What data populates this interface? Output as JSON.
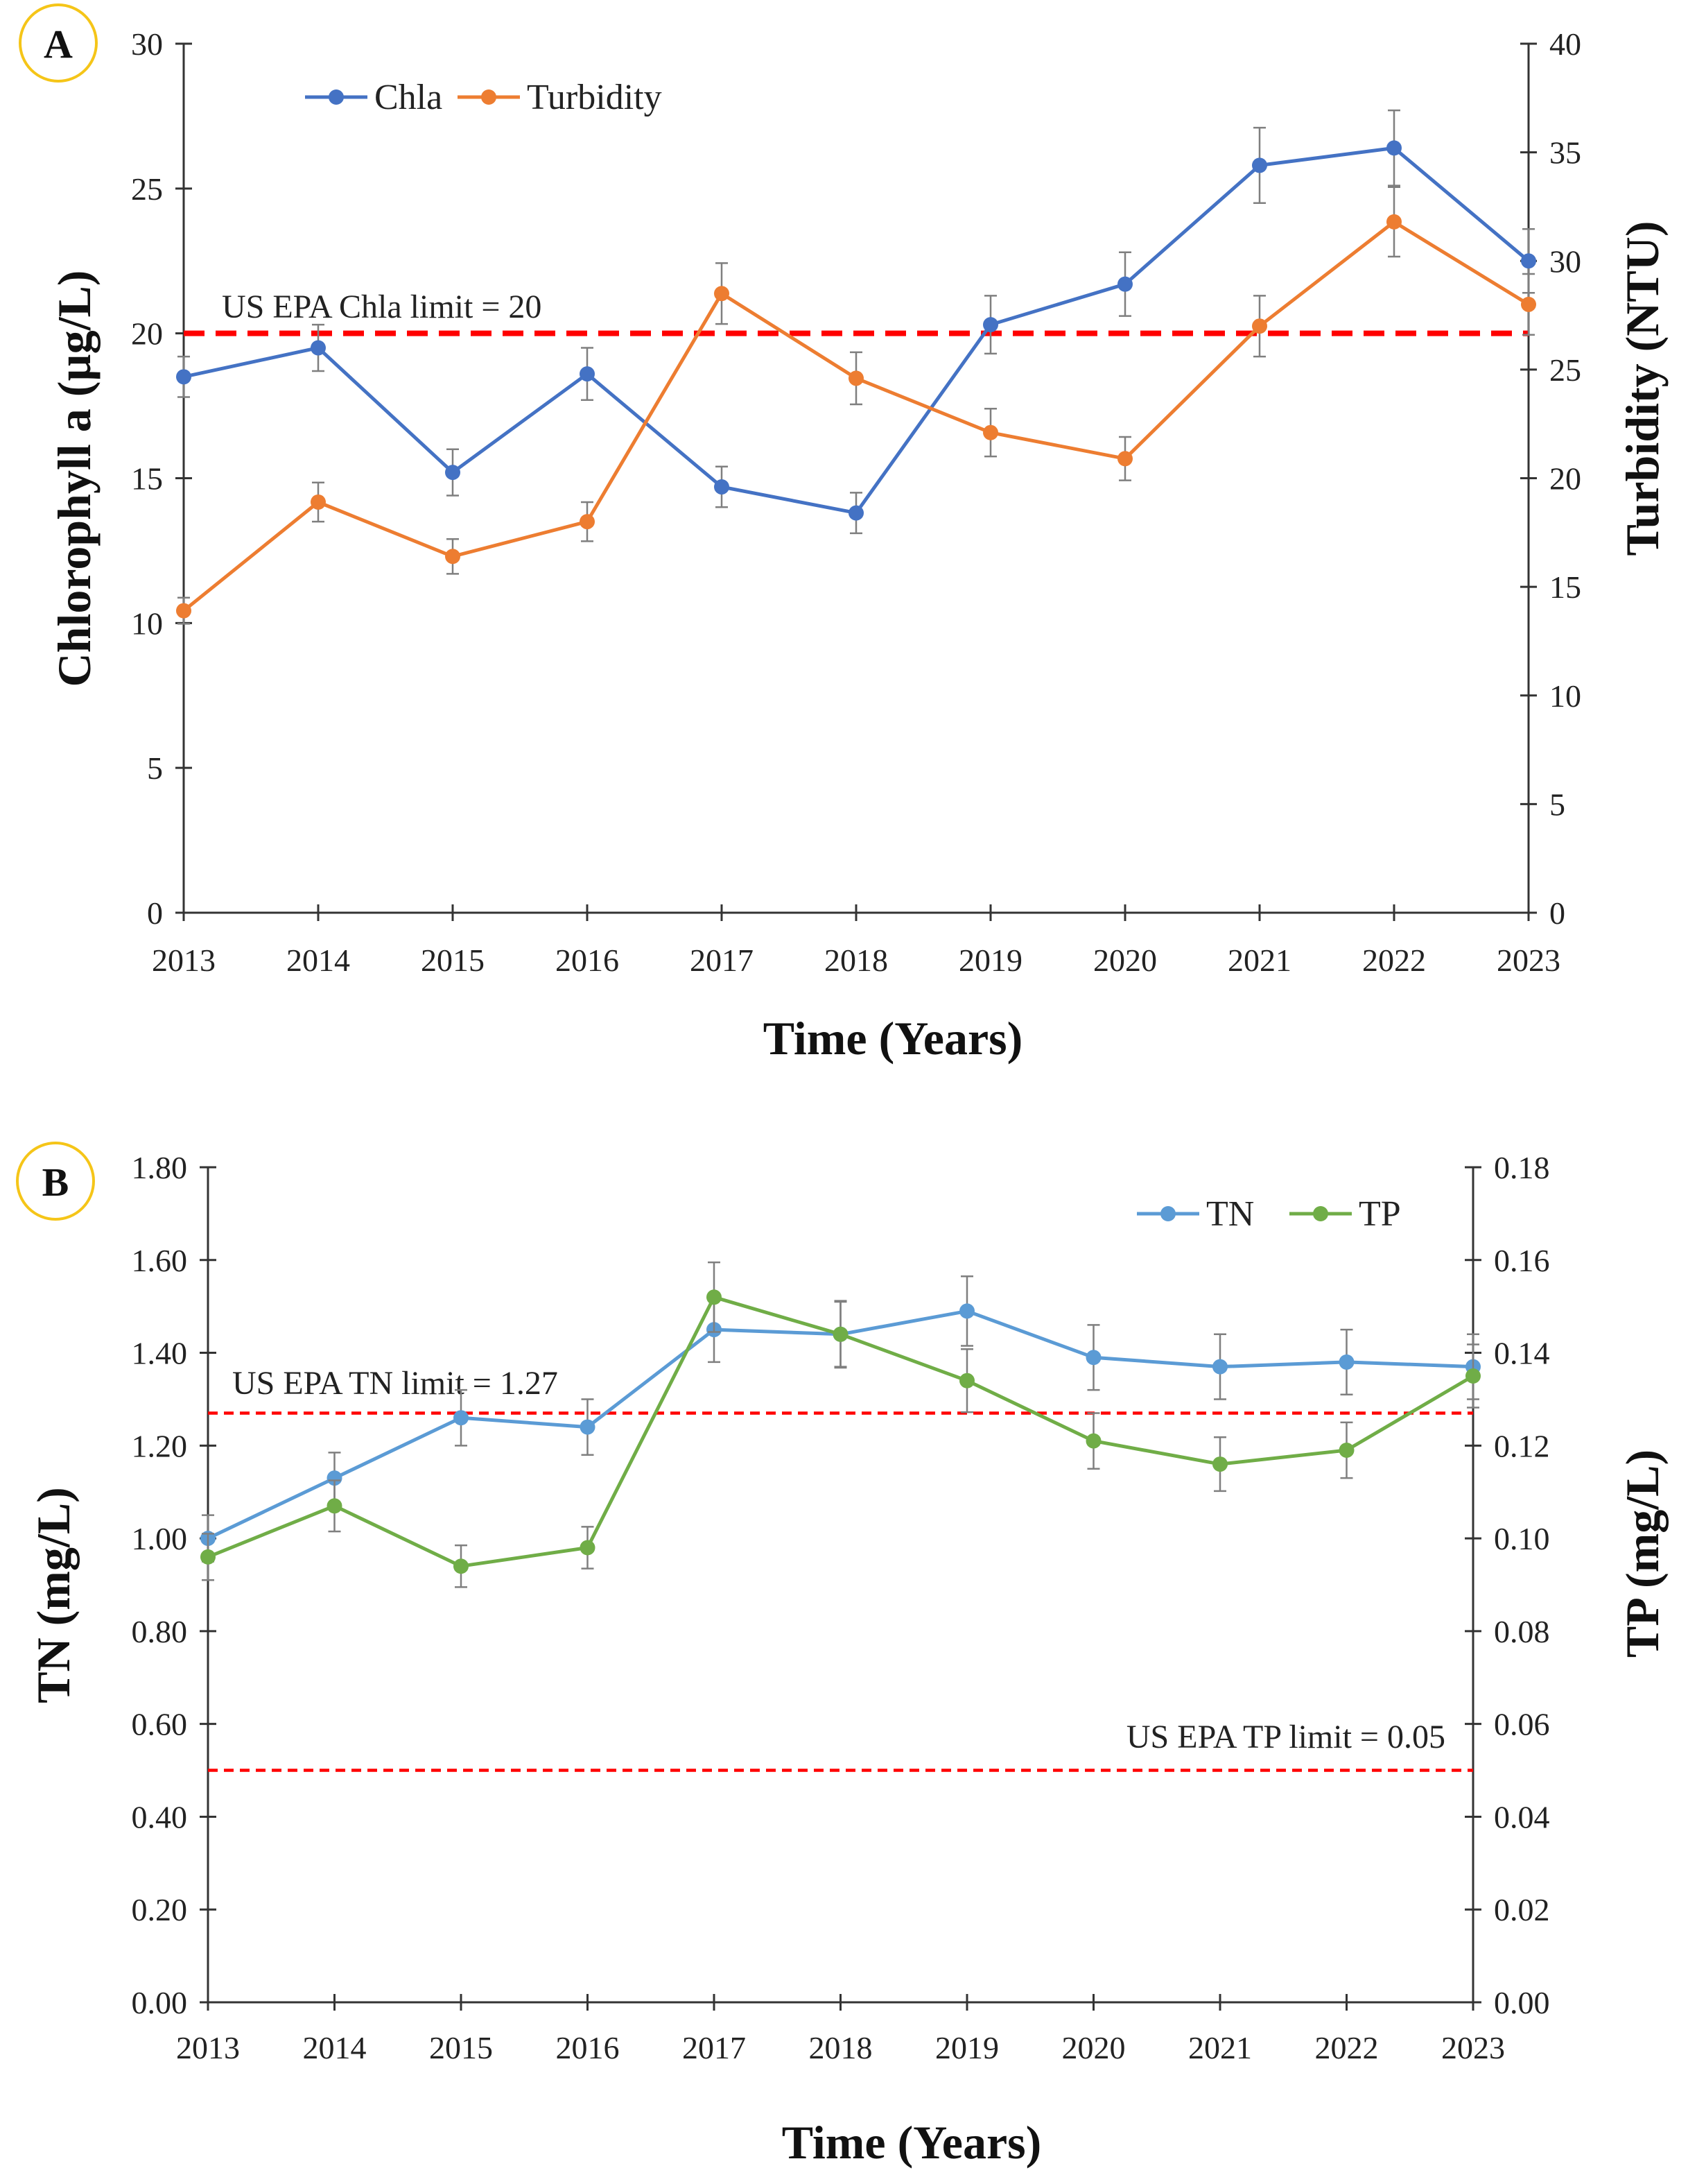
{
  "chart_data": [
    {
      "type": "line",
      "panel_label": "A",
      "categories": [
        "2013",
        "2014",
        "2015",
        "2016",
        "2017",
        "2018",
        "2019",
        "2020",
        "2021",
        "2022",
        "2023"
      ],
      "xlabel": "Time (Years)",
      "ylabel": "Chlorophyll a (µg/L)",
      "ylabel_right": "Turbidity (NTU)",
      "ylim": [
        0,
        30
      ],
      "yticks": [
        "0",
        "5",
        "10",
        "15",
        "20",
        "25",
        "30"
      ],
      "ylim_right": [
        0,
        40
      ],
      "yticks_right": [
        "0",
        "5",
        "10",
        "15",
        "20",
        "25",
        "30",
        "35",
        "40"
      ],
      "legend_position": "top-left",
      "series": [
        {
          "name": "Chla",
          "axis": "left",
          "color": "#4472C4",
          "values": [
            18.5,
            19.5,
            15.2,
            18.6,
            14.7,
            13.8,
            20.3,
            21.7,
            25.8,
            26.4,
            22.5
          ],
          "errors": [
            0.7,
            0.8,
            0.8,
            0.9,
            0.7,
            0.7,
            1.0,
            1.1,
            1.3,
            1.3,
            1.1
          ]
        },
        {
          "name": "Turbidity",
          "axis": "right",
          "color": "#ED7D31",
          "values": [
            13.9,
            18.9,
            16.4,
            18.0,
            28.5,
            24.6,
            22.1,
            20.9,
            27.0,
            31.8,
            28.0
          ],
          "errors": [
            0.6,
            0.9,
            0.8,
            0.9,
            1.4,
            1.2,
            1.1,
            1.0,
            1.4,
            1.6,
            1.4
          ]
        }
      ],
      "limits": [
        {
          "label": "US EPA Chla limit = 20",
          "axis": "left",
          "value": 20,
          "color": "#FF0000"
        }
      ]
    },
    {
      "type": "line",
      "panel_label": "B",
      "categories": [
        "2013",
        "2014",
        "2015",
        "2016",
        "2017",
        "2018",
        "2019",
        "2020",
        "2021",
        "2022",
        "2023"
      ],
      "xlabel": "Time (Years)",
      "ylabel": "TN (mg/L)",
      "ylabel_right": "TP (mg/L)",
      "ylim": [
        0,
        1.8
      ],
      "yticks": [
        "0.00",
        "0.20",
        "0.40",
        "0.60",
        "0.80",
        "1.00",
        "1.20",
        "1.40",
        "1.60",
        "1.80"
      ],
      "ylim_right": [
        0,
        0.18
      ],
      "yticks_right": [
        "0.00",
        "0.02",
        "0.04",
        "0.06",
        "0.08",
        "0.10",
        "0.12",
        "0.14",
        "0.16",
        "0.18"
      ],
      "legend_position": "top-right",
      "series": [
        {
          "name": "TN",
          "axis": "left",
          "color": "#5B9BD5",
          "values": [
            1.0,
            1.13,
            1.26,
            1.24,
            1.45,
            1.44,
            1.49,
            1.39,
            1.37,
            1.38,
            1.37
          ],
          "errors": [
            0.05,
            0.055,
            0.06,
            0.06,
            0.07,
            0.07,
            0.075,
            0.07,
            0.07,
            0.07,
            0.07
          ]
        },
        {
          "name": "TP",
          "axis": "right",
          "color": "#70AD47",
          "values": [
            0.096,
            0.107,
            0.094,
            0.098,
            0.152,
            0.144,
            0.134,
            0.121,
            0.116,
            0.119,
            0.135
          ],
          "errors": [
            0.005,
            0.0055,
            0.0045,
            0.0045,
            0.0075,
            0.0072,
            0.0068,
            0.006,
            0.0058,
            0.006,
            0.0068
          ]
        }
      ],
      "limits": [
        {
          "label": "US EPA TN limit = 1.27",
          "axis": "left",
          "value": 1.27,
          "color": "#FF0000",
          "label_position": "left"
        },
        {
          "label": "US EPA TP limit = 0.05",
          "axis": "right",
          "value": 0.05,
          "color": "#FF0000",
          "label_position": "right"
        }
      ]
    }
  ]
}
